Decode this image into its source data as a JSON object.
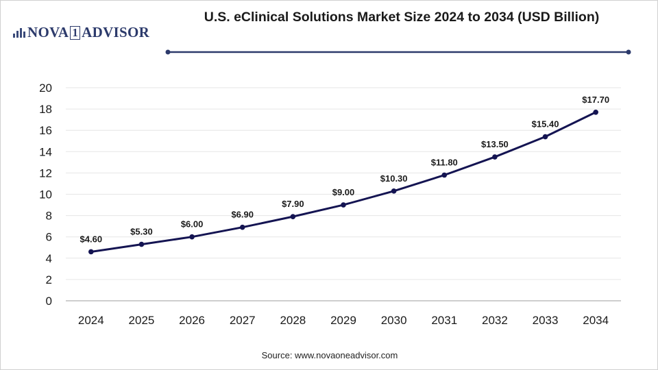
{
  "brand": {
    "logo_text_left": "NOVA",
    "logo_text_mid": "1",
    "logo_text_right": "ADVISOR"
  },
  "title": "U.S. eClinical Solutions Market Size 2024 to 2034 (USD Billion)",
  "source": "Source: www.novaoneadvisor.com",
  "colors": {
    "line": "#141452",
    "grid": "#e6e6e6",
    "axis": "#9e9e9e",
    "text": "#1a1a1a"
  },
  "chart_data": {
    "type": "line",
    "title": "U.S. eClinical Solutions Market Size 2024 to 2034 (USD Billion)",
    "xlabel": "",
    "ylabel": "",
    "ylim": [
      0,
      20
    ],
    "yticks": [
      0,
      2,
      4,
      6,
      8,
      10,
      12,
      14,
      16,
      18,
      20
    ],
    "grid": true,
    "legend": "none",
    "categories": [
      "2024",
      "2025",
      "2026",
      "2027",
      "2028",
      "2029",
      "2030",
      "2031",
      "2032",
      "2033",
      "2034"
    ],
    "series": [
      {
        "values": [
          4.6,
          5.3,
          6.0,
          6.9,
          7.9,
          9.0,
          10.3,
          11.8,
          13.5,
          15.4,
          17.7
        ],
        "labels": [
          "$4.60",
          "$5.30",
          "$6.00",
          "$6.90",
          "$7.90",
          "$9.00",
          "$10.30",
          "$11.80",
          "$13.50",
          "$15.40",
          "$17.70"
        ]
      }
    ]
  }
}
